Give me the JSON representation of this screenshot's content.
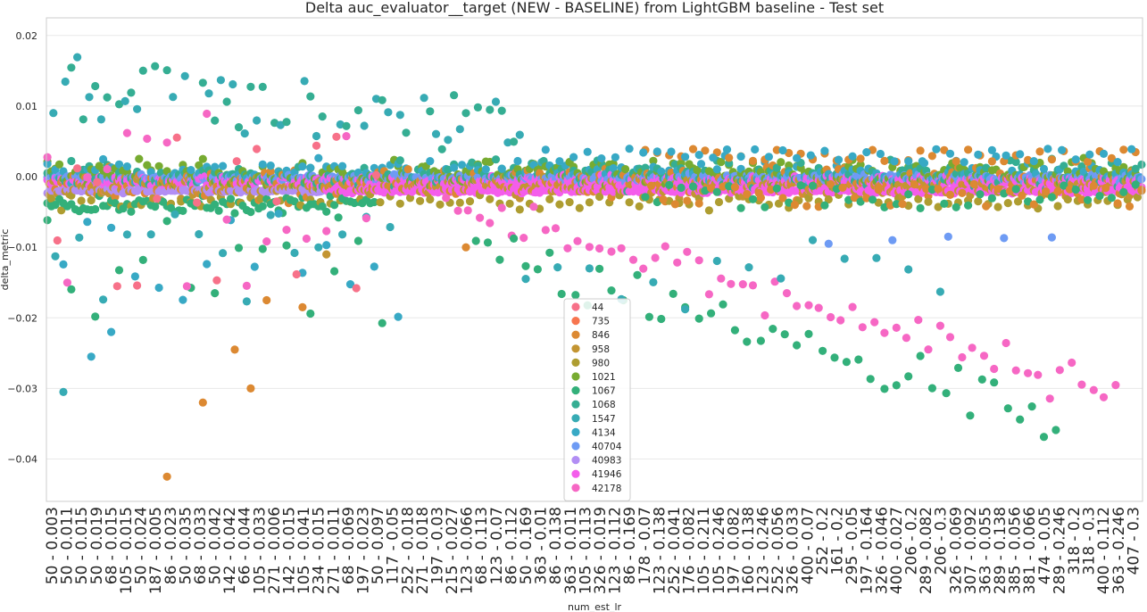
{
  "chart_data": {
    "type": "scatter",
    "title": "Delta auc_evaluator__target (NEW - BASELINE) from LightGBM baseline - Test set",
    "xlabel": "num_est_lr",
    "ylabel": "delta_metric",
    "ylim": [
      -0.046,
      0.0225
    ],
    "yticks": [
      0.02,
      0.01,
      0.0,
      -0.01,
      -0.02,
      -0.03,
      -0.04
    ],
    "ytick_labels": [
      "0.02",
      "0.01",
      "0.00",
      "−0.01",
      "−0.02",
      "−0.03",
      "−0.04"
    ],
    "grid": true,
    "legend_position": "lower-center",
    "xtick_labels": [
      "50 - 0.003",
      "50 - 0.011",
      "50 - 0.015",
      "50 - 0.019",
      "68 - 0.015",
      "105 - 0.015",
      "50 - 0.024",
      "187 - 0.005",
      "86 - 0.023",
      "50 - 0.035",
      "68 - 0.033",
      "50 - 0.042",
      "142 - 0.042",
      "66 - 0.044",
      "105 - 0.033",
      "271 - 0.006",
      "142 - 0.015",
      "105 - 0.041",
      "234 - 0.015",
      "271 - 0.011",
      "68 - 0.069",
      "197 - 0.023",
      "50 - 0.097",
      "117 - 0.05",
      "252 - 0.018",
      "271 - 0.018",
      "197 - 0.03",
      "215 - 0.027",
      "123 - 0.066",
      "68 - 0.113",
      "123 - 0.07",
      "86 - 0.112",
      "50 - 0.169",
      "363 - 0.01",
      "86 - 0.138",
      "363 - 0.011",
      "105 - 0.113",
      "326 - 0.019",
      "123 - 0.112",
      "86 - 0.169",
      "178 - 0.07",
      "123 - 0.138",
      "252 - 0.041",
      "176 - 0.082",
      "105 - 0.211",
      "105 - 0.246",
      "197 - 0.082",
      "160 - 0.138",
      "123 - 0.246",
      "252 - 0.056",
      "326 - 0.033",
      "400 - 0.07",
      "252 - 0.2",
      "161 - 0.2",
      "295 - 0.05",
      "197 - 0.164",
      "326 - 0.046",
      "400 - 0.027",
      "206 - 0.2",
      "289 - 0.082",
      "206 - 0.3",
      "326 - 0.069",
      "307 - 0.092",
      "363 - 0.055",
      "289 - 0.138",
      "385 - 0.056",
      "381 - 0.066",
      "474 - 0.05",
      "289 - 0.246",
      "318 - 0.2",
      "318 - 0.3",
      "400 - 0.112",
      "363 - 0.246",
      "407 - 0.3"
    ],
    "series": [
      {
        "name": "44",
        "color": "#f77189"
      },
      {
        "name": "735",
        "color": "#f7754f"
      },
      {
        "name": "846",
        "color": "#dc8932"
      },
      {
        "name": "958",
        "color": "#c39532"
      },
      {
        "name": "980",
        "color": "#ae9d31"
      },
      {
        "name": "1021",
        "color": "#77ab31"
      },
      {
        "name": "1067",
        "color": "#33b07a"
      },
      {
        "name": "1068",
        "color": "#35ae93"
      },
      {
        "name": "1547",
        "color": "#37abb4"
      },
      {
        "name": "4134",
        "color": "#38a9c5"
      },
      {
        "name": "40704",
        "color": "#6e9bf4"
      },
      {
        "name": "40983",
        "color": "#b28ef4"
      },
      {
        "name": "41946",
        "color": "#f45deb"
      },
      {
        "name": "42178",
        "color": "#f667c4"
      }
    ],
    "seed": 7
  }
}
